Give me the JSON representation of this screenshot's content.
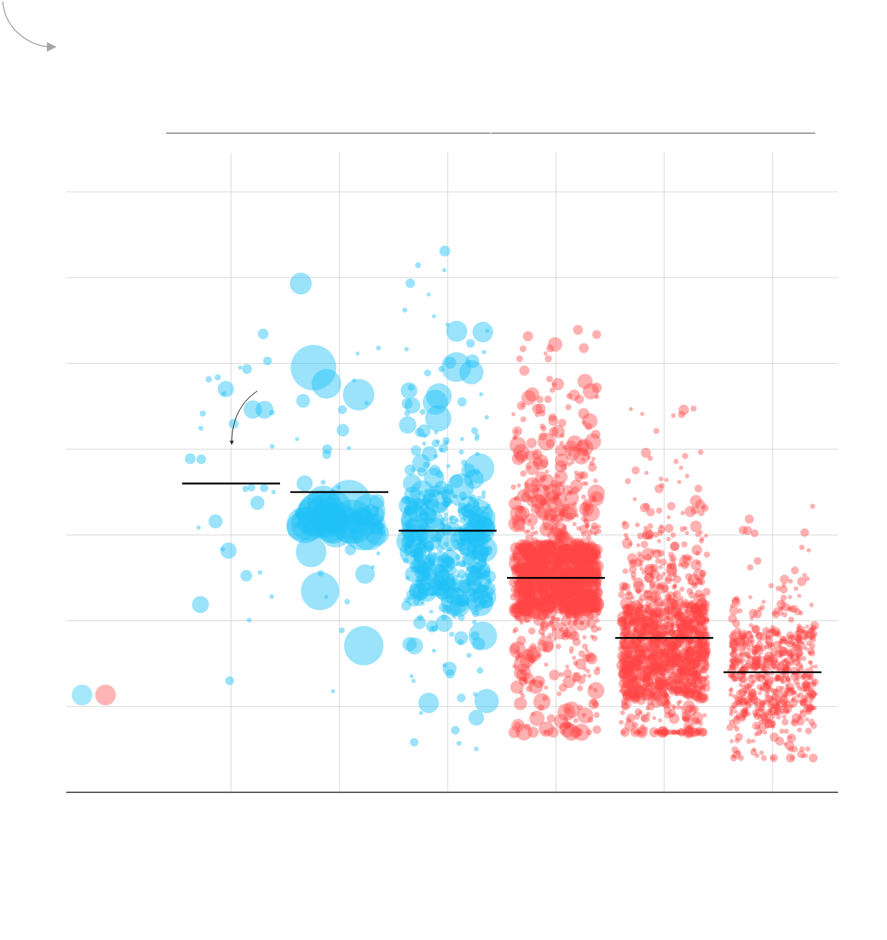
{
  "colors": {
    "blue": "#1ec2f6",
    "red": "#ff4545",
    "grid": "#d3d3d3",
    "axis": "#555555",
    "median": "#000000",
    "decor": "#a6a6a6"
  },
  "legend": {
    "swatches": [
      {
        "series": "blue-group",
        "color": "#1ec2f6"
      },
      {
        "series": "red-group",
        "color": "#ff4545"
      }
    ]
  },
  "chart_data": {
    "type": "scatter",
    "title": "",
    "xlabel": "",
    "ylabel": "",
    "ylim": [
      0,
      7.5
    ],
    "yticks": [
      1,
      2,
      3,
      4,
      5,
      6,
      7
    ],
    "grid": true,
    "categories": [
      "",
      "",
      "",
      "",
      "",
      ""
    ],
    "group_brackets": [
      {
        "label": "",
        "categories": [
          0,
          1,
          2
        ],
        "color": "blue"
      },
      {
        "label": "",
        "categories": [
          3,
          4,
          5
        ],
        "color": "red"
      }
    ],
    "series": [
      {
        "category": 0,
        "color": "blue",
        "median": 3.6,
        "n_points": 32,
        "spread": [
          1.0,
          7.05
        ],
        "size_range": [
          3,
          14
        ],
        "cores": []
      },
      {
        "category": 1,
        "color": "blue",
        "median": 3.5,
        "n_points": 110,
        "spread": [
          0.9,
          5.95
        ],
        "size_range": [
          3,
          36
        ],
        "cores": [
          [
            3.0,
            3.3
          ]
        ]
      },
      {
        "category": 2,
        "color": "blue",
        "median": 3.05,
        "n_points": 450,
        "spread": [
          0.45,
          6.4
        ],
        "size_range": [
          3,
          22
        ],
        "cores": [
          [
            2.2,
            3.5
          ]
        ]
      },
      {
        "category": 3,
        "color": "red",
        "median": 2.5,
        "n_points": 1300,
        "spread": [
          0.7,
          5.4
        ],
        "size_range": [
          3,
          13
        ],
        "cores": [
          [
            2.1,
            2.9
          ]
        ]
      },
      {
        "category": 4,
        "color": "red",
        "median": 1.8,
        "n_points": 1400,
        "spread": [
          0.7,
          4.5
        ],
        "size_range": [
          3,
          9
        ],
        "cores": [
          [
            1.1,
            2.2
          ]
        ]
      },
      {
        "category": 5,
        "color": "red",
        "median": 1.4,
        "n_points": 650,
        "spread": [
          0.4,
          3.4
        ],
        "size_range": [
          3,
          7
        ],
        "cores": [
          [
            0.8,
            1.9
          ]
        ]
      }
    ],
    "annotation": {
      "category": 0,
      "value": 4.05,
      "text": ""
    }
  }
}
